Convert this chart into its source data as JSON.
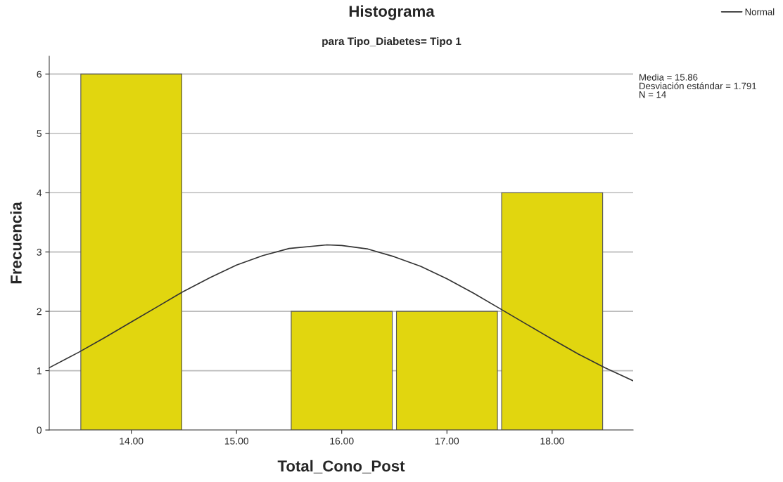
{
  "chart_data": {
    "type": "histogram",
    "title": "Histograma",
    "subtitle": "para Tipo_Diabetes= Tipo 1",
    "xlabel": "Total_Cono_Post",
    "ylabel": "Frecuencia",
    "bins": [
      13.5,
      14.5,
      15.5,
      16.5,
      17.5,
      18.5
    ],
    "values": [
      6,
      0,
      2,
      2,
      4
    ],
    "color": "#e1d60f",
    "series": [
      {
        "name": "Normal",
        "type": "line",
        "color": "#333333",
        "x": [
          13.22,
          13.5,
          13.75,
          14.0,
          14.25,
          14.5,
          14.75,
          15.0,
          15.25,
          15.5,
          15.86,
          16.0,
          16.25,
          16.5,
          16.75,
          17.0,
          17.25,
          17.5,
          17.75,
          18.0,
          18.25,
          18.5,
          18.77
        ],
        "values": [
          1.05,
          1.31,
          1.56,
          1.82,
          2.08,
          2.34,
          2.57,
          2.78,
          2.94,
          3.06,
          3.12,
          3.11,
          3.05,
          2.92,
          2.76,
          2.55,
          2.31,
          2.05,
          1.79,
          1.53,
          1.28,
          1.05,
          0.83
        ]
      }
    ],
    "xlim": [
      13.22,
      18.77
    ],
    "xticks": [
      {
        "value": 14,
        "label": "14.00"
      },
      {
        "value": 15,
        "label": "15.00"
      },
      {
        "value": 16,
        "label": "16.00"
      },
      {
        "value": 17,
        "label": "17.00"
      },
      {
        "value": 18,
        "label": "18.00"
      }
    ],
    "ylim": [
      0,
      6.3
    ],
    "yticks": [
      0,
      1,
      2,
      3,
      4,
      5,
      6
    ],
    "grid": "y",
    "legend": "top right",
    "annotations": [
      "Media = 15.86\nDesviación estándar = 1.791\nN = 14"
    ]
  }
}
